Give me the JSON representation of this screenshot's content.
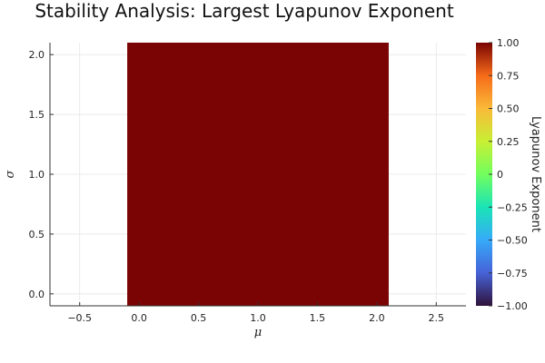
{
  "chart_data": {
    "type": "heatmap",
    "title": "Stability Analysis: Largest Lyapunov Exponent",
    "xlabel": "μ",
    "ylabel": "σ",
    "colorbar_label": "Lyapunov Exponent",
    "xlim": [
      -0.75,
      2.75
    ],
    "ylim": [
      -0.1,
      2.1
    ],
    "xticks": [
      -0.5,
      0.0,
      0.5,
      1.0,
      1.5,
      2.0,
      2.5
    ],
    "xtick_labels": [
      "−0.5",
      "0.0",
      "0.5",
      "1.0",
      "1.5",
      "2.0",
      "2.5"
    ],
    "yticks": [
      0.0,
      0.5,
      1.0,
      1.5,
      2.0
    ],
    "ytick_labels": [
      "0.0",
      "0.5",
      "1.0",
      "1.5",
      "2.0"
    ],
    "clim": [
      -1.0,
      1.0
    ],
    "cticks": [
      -1.0,
      -0.75,
      -0.5,
      -0.25,
      0,
      0.25,
      0.5,
      0.75,
      1.0
    ],
    "ctick_labels": [
      "−1.00",
      "−0.75",
      "−0.50",
      "−0.25",
      "0",
      "0.25",
      "0.50",
      "0.75",
      "1.00"
    ],
    "colormap": "turbo",
    "grid": true,
    "cells": [
      {
        "x_range": [
          -0.1,
          2.1
        ],
        "y_range": [
          -0.1,
          2.1
        ],
        "value": 1.0,
        "color": "#7a0403"
      }
    ]
  }
}
